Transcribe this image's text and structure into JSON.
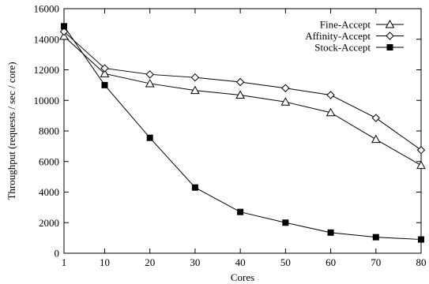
{
  "chart_data": {
    "type": "line",
    "title": "",
    "xlabel": "Cores",
    "ylabel": "Throughput (requests / sec / core)",
    "x": [
      1,
      10,
      20,
      30,
      40,
      50,
      60,
      70,
      80
    ],
    "xticks": [
      "1",
      "10",
      "20",
      "30",
      "40",
      "50",
      "60",
      "70",
      "80"
    ],
    "yticks": [
      "0",
      "2000",
      "4000",
      "6000",
      "8000",
      "10000",
      "12000",
      "14000",
      "16000"
    ],
    "xlim": [
      1,
      80
    ],
    "ylim": [
      0,
      16000
    ],
    "grid": false,
    "legend_position": "top-right",
    "series": [
      {
        "name": "Fine-Accept",
        "marker": "triangle-open",
        "values": [
          14200,
          11750,
          11100,
          10650,
          10350,
          9900,
          9200,
          7450,
          5750
        ]
      },
      {
        "name": "Affinity-Accept",
        "marker": "diamond-open",
        "values": [
          14500,
          12100,
          11700,
          11500,
          11200,
          10800,
          10350,
          8850,
          6750
        ]
      },
      {
        "name": "Stock-Accept",
        "marker": "square-filled",
        "values": [
          14850,
          11000,
          7550,
          4300,
          2700,
          2000,
          1350,
          1050,
          900
        ]
      }
    ]
  }
}
